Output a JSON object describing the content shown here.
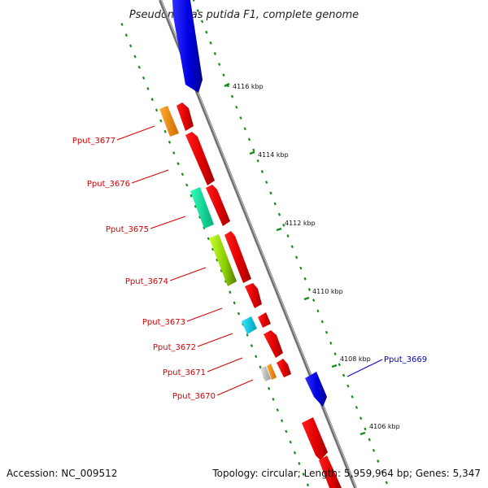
{
  "title": "Pseudomonas putida F1, complete genome",
  "footer": {
    "accession": "Accession: NC_009512",
    "topology": "Topology: circular; Length: 5,959,964 bp; Genes: 5,347"
  },
  "colors": {
    "backbone": "#808080",
    "tick": "#1a8a1a",
    "forward_label": "#d40000",
    "reverse_label": "#0000d0"
  },
  "scale_labels": [
    "4116 kbp",
    "4114 kbp",
    "4112 kbp",
    "4110 kbp",
    "4108 kbp",
    "4106 kbp"
  ],
  "gene_labels": [
    {
      "text": "Pput_3677",
      "strand": "forward"
    },
    {
      "text": "Pput_3676",
      "strand": "forward"
    },
    {
      "text": "Pput_3675",
      "strand": "forward"
    },
    {
      "text": "Pput_3674",
      "strand": "forward"
    },
    {
      "text": "Pput_3673",
      "strand": "forward"
    },
    {
      "text": "Pput_3672",
      "strand": "forward"
    },
    {
      "text": "Pput_3671",
      "strand": "forward"
    },
    {
      "text": "Pput_3670",
      "strand": "forward"
    },
    {
      "text": "Pput_3669",
      "strand": "reverse"
    }
  ]
}
